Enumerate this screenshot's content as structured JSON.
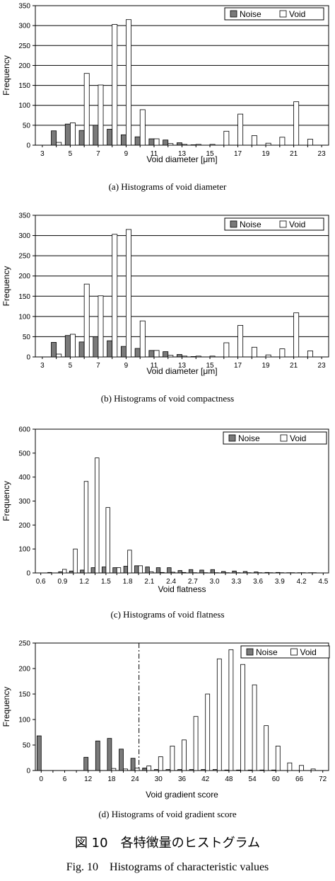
{
  "figure": {
    "title_jp": "図 10　各特徴量のヒストグラム",
    "title_en": "Fig. 10　Histograms of characteristic values"
  },
  "colors": {
    "noise": "#7a7a7a",
    "void": "#ffffff",
    "grid": "#000000"
  },
  "chart_data": [
    {
      "type": "bar",
      "caption": "(a) Histograms of void diameter",
      "xlabel": "Void diameter [μm]",
      "ylabel": "Frequency",
      "ylim": [
        0,
        350
      ],
      "yticks": [
        0,
        50,
        100,
        150,
        200,
        250,
        300,
        350
      ],
      "categories": [
        "3",
        "4",
        "5",
        "6",
        "7",
        "8",
        "9",
        "10",
        "11",
        "12",
        "13",
        "14",
        "15",
        "16",
        "17",
        "18",
        "19",
        "20",
        "21",
        "22",
        "23"
      ],
      "tick_labels": [
        "3",
        "",
        "5",
        "",
        "7",
        "",
        "9",
        "",
        "11",
        "",
        "13",
        "",
        "15",
        "",
        "17",
        "",
        "19",
        "",
        "21",
        "",
        "23"
      ],
      "legend": "top-right",
      "grid": true,
      "series": [
        {
          "name": "Noise",
          "values": [
            0,
            36,
            53,
            37,
            50,
            40,
            26,
            21,
            16,
            13,
            6,
            1,
            0,
            0,
            0,
            0,
            0,
            0,
            0,
            0,
            0
          ]
        },
        {
          "name": "Void",
          "values": [
            0,
            7,
            56,
            180,
            151,
            303,
            315,
            89,
            16,
            4,
            2,
            2,
            2,
            35,
            78,
            24,
            5,
            20,
            109,
            15,
            0
          ]
        }
      ]
    },
    {
      "type": "bar",
      "caption": "(b) Histograms of void compactness",
      "xlabel": "Void diameter [μm]",
      "ylabel": "Frequency",
      "ylim": [
        0,
        350
      ],
      "yticks": [
        0,
        50,
        100,
        150,
        200,
        250,
        300,
        350
      ],
      "categories": [
        "3",
        "4",
        "5",
        "6",
        "7",
        "8",
        "9",
        "10",
        "11",
        "12",
        "13",
        "14",
        "15",
        "16",
        "17",
        "18",
        "19",
        "20",
        "21",
        "22",
        "23"
      ],
      "tick_labels": [
        "3",
        "",
        "5",
        "",
        "7",
        "",
        "9",
        "",
        "11",
        "",
        "13",
        "",
        "15",
        "",
        "17",
        "",
        "19",
        "",
        "21",
        "",
        "23"
      ],
      "legend": "top-right",
      "grid": true,
      "series": [
        {
          "name": "Noise",
          "values": [
            0,
            36,
            53,
            37,
            50,
            40,
            26,
            21,
            16,
            13,
            6,
            1,
            0,
            0,
            0,
            0,
            0,
            0,
            0,
            0,
            0
          ]
        },
        {
          "name": "Void",
          "values": [
            0,
            7,
            56,
            180,
            151,
            303,
            315,
            89,
            16,
            4,
            2,
            2,
            2,
            35,
            78,
            24,
            5,
            20,
            109,
            15,
            0
          ]
        }
      ]
    },
    {
      "type": "bar",
      "caption": "(c) Histograms of void flatness",
      "xlabel": "Void flatness",
      "ylabel": "Frequency",
      "ylim": [
        0,
        600
      ],
      "yticks": [
        0,
        100,
        200,
        300,
        400,
        500,
        600
      ],
      "categories": [
        "0.6",
        "0.75",
        "0.9",
        "1.05",
        "1.2",
        "1.35",
        "1.5",
        "1.65",
        "1.8",
        "1.95",
        "2.1",
        "2.25",
        "2.4",
        "2.55",
        "2.7",
        "2.85",
        "3.0",
        "3.15",
        "3.3",
        "3.45",
        "3.6",
        "3.75",
        "3.9",
        "4.05",
        "4.2",
        "4.35",
        "4.5"
      ],
      "tick_labels": [
        "0.6",
        "",
        "0.9",
        "",
        "1.2",
        "",
        "1.5",
        "",
        "1.8",
        "",
        "2.1",
        "",
        "2.4",
        "",
        "2.7",
        "",
        "3.0",
        "",
        "3.3",
        "",
        "3.6",
        "",
        "3.9",
        "",
        "4.2",
        "",
        "4.5"
      ],
      "legend": "top-right",
      "grid": false,
      "series": [
        {
          "name": "Noise",
          "values": [
            0,
            2,
            5,
            8,
            12,
            22,
            25,
            22,
            28,
            30,
            25,
            22,
            22,
            10,
            14,
            12,
            14,
            6,
            8,
            6,
            4,
            2,
            2,
            1,
            1,
            1,
            0
          ]
        },
        {
          "name": "Void",
          "values": [
            0,
            0,
            15,
            100,
            382,
            480,
            273,
            22,
            95,
            30,
            5,
            2,
            3,
            2,
            1,
            1,
            1,
            1,
            1,
            1,
            1,
            1,
            1,
            1,
            1,
            1,
            0
          ]
        }
      ]
    },
    {
      "type": "bar",
      "caption": "(d) Histograms of void gradient score",
      "xlabel": "Void gradient score",
      "ylabel": "Frequency",
      "ylim": [
        0,
        250
      ],
      "yticks": [
        0,
        50,
        100,
        150,
        200,
        250
      ],
      "categories": [
        "0",
        "3",
        "6",
        "9",
        "12",
        "15",
        "18",
        "21",
        "24",
        "27",
        "30",
        "33",
        "36",
        "39",
        "42",
        "45",
        "48",
        "51",
        "54",
        "57",
        "60",
        "63",
        "66",
        "69",
        "72"
      ],
      "tick_labels": [
        "0",
        "",
        "6",
        "",
        "12",
        "",
        "18",
        "",
        "24",
        "",
        "30",
        "",
        "36",
        "",
        "42",
        "",
        "48",
        "",
        "54",
        "",
        "60",
        "",
        "66",
        "",
        "72"
      ],
      "legend": "top-right",
      "grid": false,
      "threshold_x": 25,
      "series": [
        {
          "name": "Noise",
          "values": [
            68,
            0,
            0,
            0,
            26,
            58,
            63,
            42,
            24,
            5,
            2,
            2,
            2,
            2,
            2,
            2,
            1,
            1,
            1,
            1,
            1,
            0,
            0,
            0,
            0
          ]
        },
        {
          "name": "Void",
          "values": [
            0,
            0,
            0,
            0,
            0,
            0,
            4,
            3,
            5,
            9,
            27,
            48,
            60,
            106,
            150,
            219,
            237,
            208,
            168,
            88,
            48,
            15,
            10,
            3,
            0
          ]
        }
      ]
    }
  ]
}
